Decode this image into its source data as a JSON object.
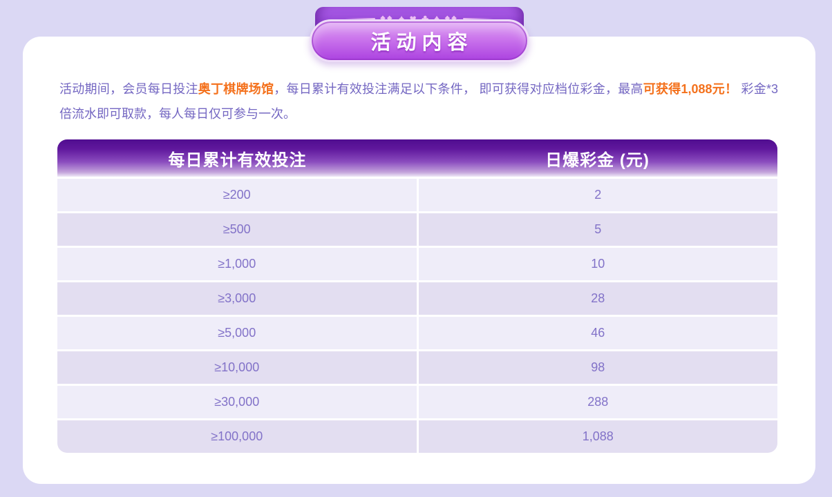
{
  "banner": {
    "title": "活动内容",
    "suits": [
      "♠",
      "♥",
      "♣",
      "♦"
    ],
    "diamond_pair": "◆◆"
  },
  "description": {
    "segments": [
      {
        "text": "活动期间，会员每日投注",
        "style": "normal"
      },
      {
        "text": "奥丁棋牌场馆",
        "style": "highlight"
      },
      {
        "text": "，每日累计有效投注满足以下条件， 即可获得对应档位彩金，最高",
        "style": "normal"
      },
      {
        "text": "可获得1,088元！",
        "style": "highlight"
      },
      {
        "text": " 彩金*3倍流水即可取款，每人每日仅可参与一次。",
        "style": "normal"
      }
    ]
  },
  "table": {
    "headers": [
      "每日累计有效投注",
      "日爆彩金 (元)"
    ],
    "rows": [
      [
        "≥200",
        "2"
      ],
      [
        "≥500",
        "5"
      ],
      [
        "≥1,000",
        "10"
      ],
      [
        "≥3,000",
        "28"
      ],
      [
        "≥5,000",
        "46"
      ],
      [
        "≥10,000",
        "98"
      ],
      [
        "≥30,000",
        "288"
      ],
      [
        "≥100,000",
        "1,088"
      ]
    ]
  },
  "colors": {
    "page_bg": "#dbd8f4",
    "card_bg": "#ffffff",
    "accent_orange": "#f4711c",
    "body_text_purple": "#7467c2",
    "cell_text_purple": "#8272c8",
    "header_gradient_top": "#500d90",
    "header_gradient_bottom": "#efe9f7",
    "row_odd": "#efedf9",
    "row_even": "#e3def1",
    "pill_purple": "#ab42e0",
    "pill_border": "#eedcf8",
    "ribbon_purple": "#8236c6",
    "suit_pink": "#eec2f4"
  }
}
